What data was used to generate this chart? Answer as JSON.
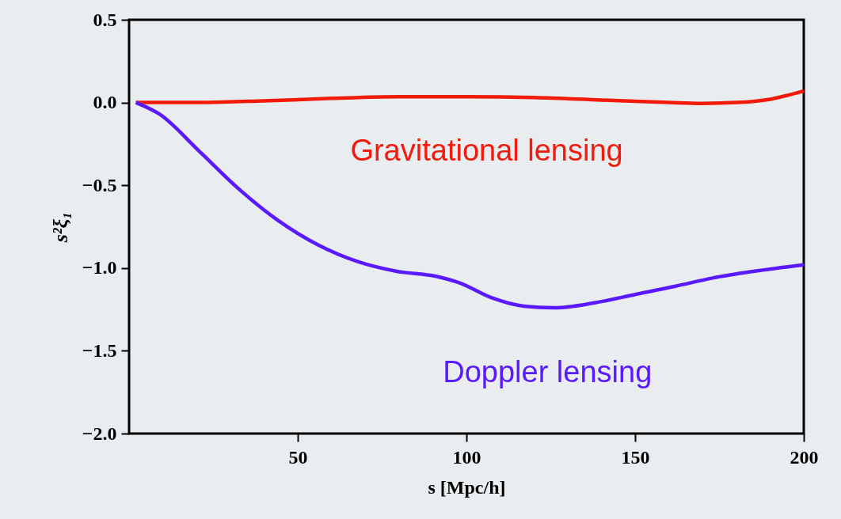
{
  "chart_data": {
    "type": "line",
    "xlabel": "s [Mpc/h]",
    "ylabel": "s²ξ₁",
    "xlim": [
      0,
      200
    ],
    "xticks": [
      50,
      100,
      150,
      200
    ],
    "ylim": [
      -2.0,
      0.5
    ],
    "yticks": [
      {
        "value": -2.0,
        "label": "−2.0"
      },
      {
        "value": -1.5,
        "label": "−1.5"
      },
      {
        "value": -1.0,
        "label": "−1.0"
      },
      {
        "value": -0.5,
        "label": "−0.5"
      },
      {
        "value": 0,
        "label": "0.0"
      },
      {
        "value": 0.5,
        "label": "0.5"
      }
    ],
    "line_style": "solid",
    "marker": "none",
    "series": [
      {
        "name": "Gravitational lensing",
        "color": "#f21a0a",
        "x": [
          2,
          20,
          40,
          60,
          80,
          100,
          120,
          140,
          160,
          170,
          180,
          190,
          200
        ],
        "values": [
          0.0,
          0.0,
          0.01,
          0.025,
          0.035,
          0.035,
          0.03,
          0.015,
          0.0,
          -0.005,
          0.0,
          0.02,
          0.07
        ]
      },
      {
        "name": "Doppler lensing",
        "color": "#5a1aff",
        "x": [
          2,
          9,
          20.6,
          32.4,
          44,
          56,
          67.6,
          79.4,
          91,
          98,
          107.5,
          117,
          126,
          138,
          150,
          162,
          173,
          185,
          200
        ],
        "values": [
          0.0,
          -0.07,
          -0.29,
          -0.52,
          -0.71,
          -0.86,
          -0.96,
          -1.02,
          -1.05,
          -1.09,
          -1.18,
          -1.23,
          -1.24,
          -1.21,
          -1.16,
          -1.11,
          -1.06,
          -1.02,
          -0.98
        ]
      }
    ]
  }
}
